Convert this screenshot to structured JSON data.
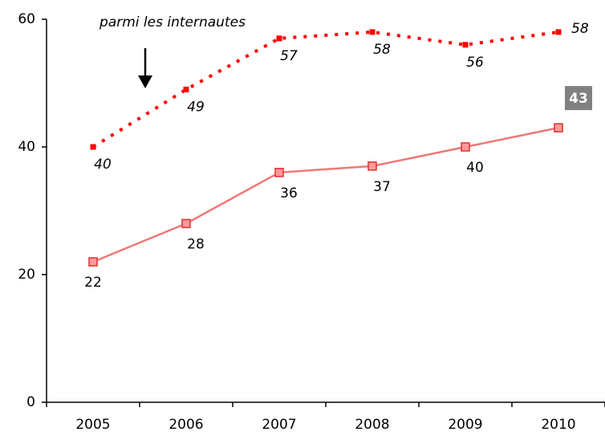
{
  "chart_data": {
    "type": "line",
    "annotation": "parmi les internautes",
    "categories": [
      "2005",
      "2006",
      "2007",
      "2008",
      "2009",
      "2010"
    ],
    "series": [
      {
        "color": "#ff0000",
        "dashed": true,
        "values": [
          40,
          49,
          57,
          58,
          56,
          58
        ]
      },
      {
        "color": "#f07878",
        "dashed": false,
        "values": [
          22,
          28,
          36,
          37,
          40,
          43
        ]
      }
    ],
    "ylim": [
      0,
      60
    ],
    "yticks": [
      0,
      20,
      40,
      60
    ],
    "grid": false
  }
}
